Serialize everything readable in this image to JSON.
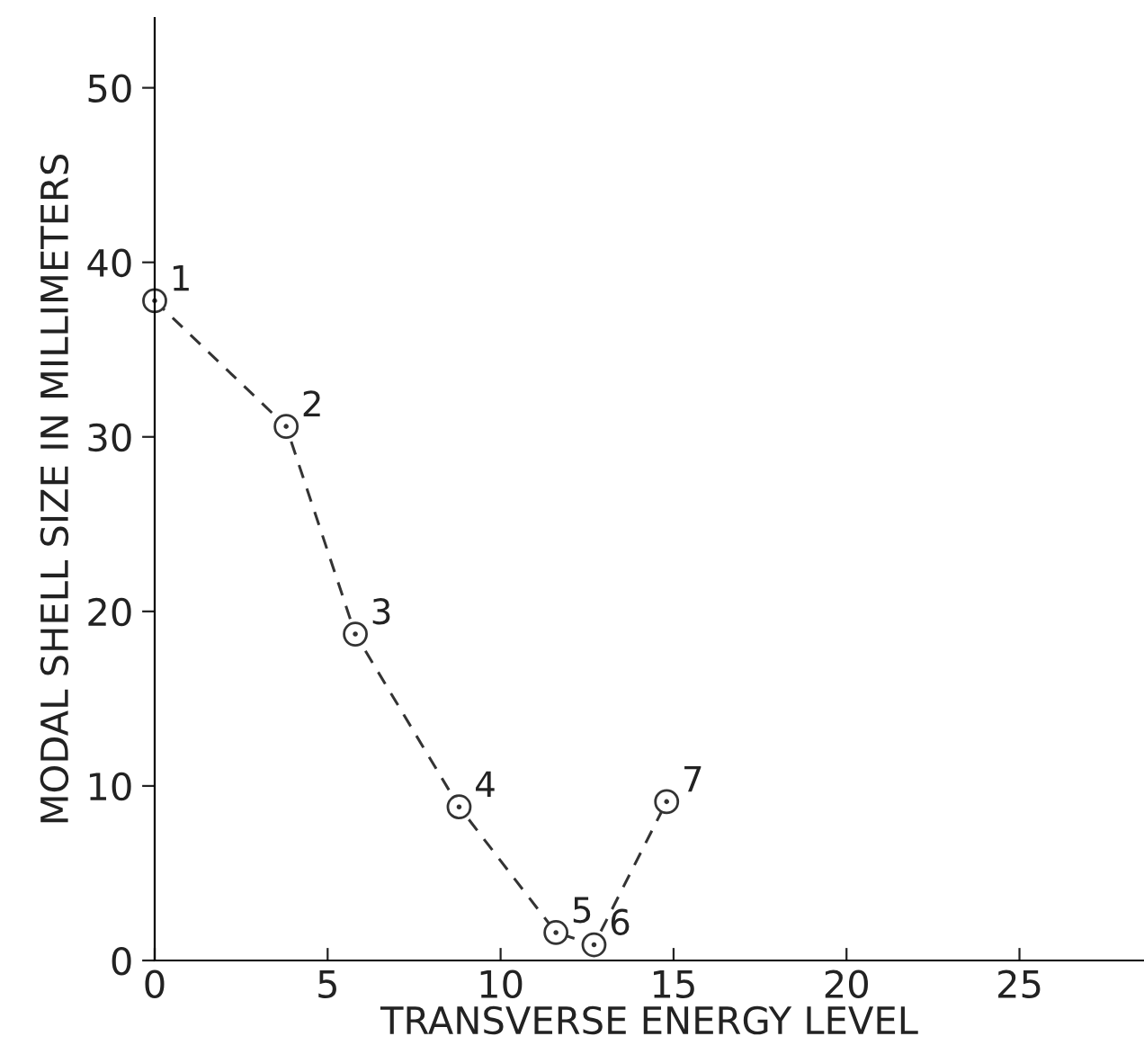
{
  "chart_data": {
    "type": "line",
    "xlabel": "TRANSVERSE ENERGY LEVEL",
    "ylabel": "MODAL SHELL SIZE IN MILLIMETERS",
    "x": [
      0,
      3.8,
      5.8,
      8.8,
      11.6,
      12.7,
      14.8
    ],
    "values": [
      37.8,
      30.6,
      18.7,
      8.8,
      1.6,
      0.9,
      9.1
    ],
    "color": "#333333",
    "marker": "circle",
    "line_style": "dashed",
    "grid": false,
    "legend": false,
    "xlim": [
      0,
      28.6
    ],
    "ylim": [
      0,
      54
    ],
    "xticks": [
      0,
      5,
      10,
      15,
      20,
      25
    ],
    "yticks": [
      0,
      10,
      20,
      30,
      40,
      50
    ],
    "annotations": [
      {
        "text": "1",
        "x": 0,
        "y": 37.8
      },
      {
        "text": "2",
        "x": 3.8,
        "y": 30.6
      },
      {
        "text": "3",
        "x": 5.8,
        "y": 18.7
      },
      {
        "text": "4",
        "x": 8.8,
        "y": 8.8
      },
      {
        "text": "5",
        "x": 11.6,
        "y": 1.6
      },
      {
        "text": "6",
        "x": 12.7,
        "y": 0.9
      },
      {
        "text": "7",
        "x": 14.8,
        "y": 9.1
      }
    ]
  }
}
